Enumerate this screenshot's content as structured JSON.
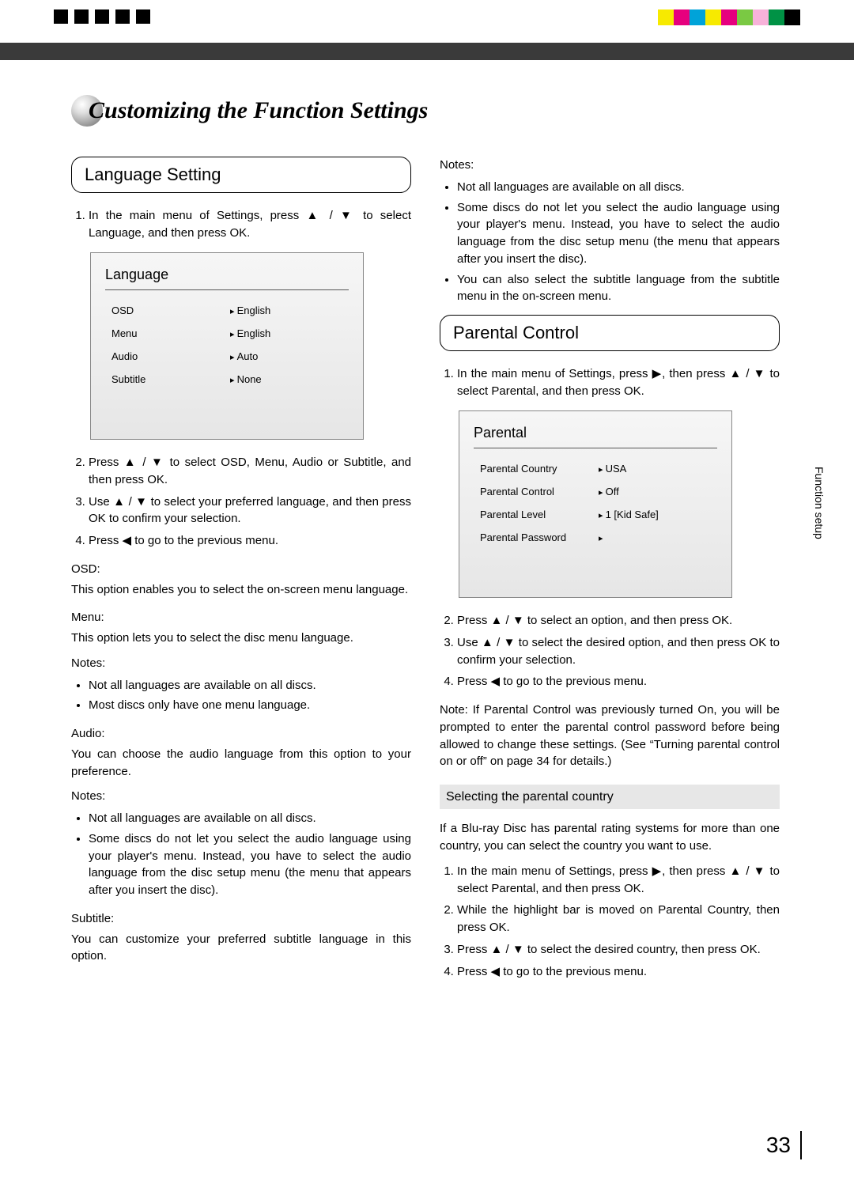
{
  "reg_colors": [
    "#f7ea00",
    "#e6007e",
    "#00a3d9",
    "#f7ea00",
    "#e6007e",
    "#7ac943",
    "#f7b2d9",
    "#009245",
    "#000000"
  ],
  "page_title": "Customizing the Function Settings",
  "side_tab": "Function setup",
  "page_number": "33",
  "left": {
    "section": "Language Setting",
    "step1": "In the main menu of Settings, press ▲ / ▼ to select Language, and then press OK.",
    "menu": {
      "title": "Language",
      "rows": [
        {
          "label": "OSD",
          "value": "English"
        },
        {
          "label": "Menu",
          "value": "English"
        },
        {
          "label": "Audio",
          "value": "Auto"
        },
        {
          "label": "Subtitle",
          "value": "None"
        }
      ]
    },
    "step2": "Press ▲ / ▼ to select OSD, Menu, Audio or Subtitle, and then press OK.",
    "step3": "Use ▲ / ▼ to select your preferred language, and then press OK to conﬁrm your selection.",
    "step4": "Press ◀ to go to the previous menu.",
    "osd_h": "OSD:",
    "osd_p": "This option enables you to select the on-screen menu language.",
    "menu_h": "Menu:",
    "menu_p": "This option lets you to select the disc menu language.",
    "notes_label": "Notes:",
    "menu_notes": [
      "Not all languages are available on all discs.",
      "Most discs only have one menu language."
    ],
    "audio_h": "Audio:",
    "audio_p": "You can choose the audio language from this option to your preference.",
    "audio_notes": [
      "Not all languages are available on all discs.",
      "Some discs do not let you select the audio language using your player's menu. Instead, you have to select the audio language from the disc setup menu (the menu that appears after you insert the disc)."
    ],
    "sub_h": "Subtitle:",
    "sub_p": "You can customize your preferred subtitle language in this option."
  },
  "right": {
    "top_notes_label": "Notes:",
    "top_notes": [
      "Not all languages are available on all discs.",
      "Some discs do not let you select the audio language using your player's menu. Instead, you have to select the audio language from the disc setup menu (the menu that appears after you insert the disc).",
      "You can also select the subtitle language from the subtitle menu in the on-screen menu."
    ],
    "section": "Parental Control",
    "step1": "In the main menu of Settings, press ▶, then press ▲ / ▼ to select Parental, and then press OK.",
    "menu": {
      "title": "Parental",
      "rows": [
        {
          "label": "Parental Country",
          "value": "USA"
        },
        {
          "label": "Parental Control",
          "value": "Off"
        },
        {
          "label": "Parental Level",
          "value": "1 [Kid Safe]"
        },
        {
          "label": "Parental Password",
          "value": ""
        }
      ]
    },
    "step2": "Press ▲ / ▼ to select an option, and then press OK.",
    "step3": "Use ▲ / ▼ to select the desired option, and then press OK to conﬁrm your selection.",
    "step4": "Press ◀ to go to the previous menu.",
    "note_p": "Note: If Parental Control was previously turned On, you will be prompted to enter the parental control password before being allowed to change these settings. (See “Turning parental control on or off” on page 34 for details.)",
    "subsection": "Selecting the parental country",
    "sub_p": "If a Blu-ray Disc has parental rating systems for more than one country, you can select the country you want to use.",
    "sub_step1": "In the main menu of Settings, press ▶, then press ▲ / ▼ to select Parental, and then press OK.",
    "sub_step2": "While the highlight bar is moved on Parental Country, then press OK.",
    "sub_step3": "Press ▲ / ▼ to select the desired country, then press OK.",
    "sub_step4": "Press ◀ to go to the previous menu."
  }
}
